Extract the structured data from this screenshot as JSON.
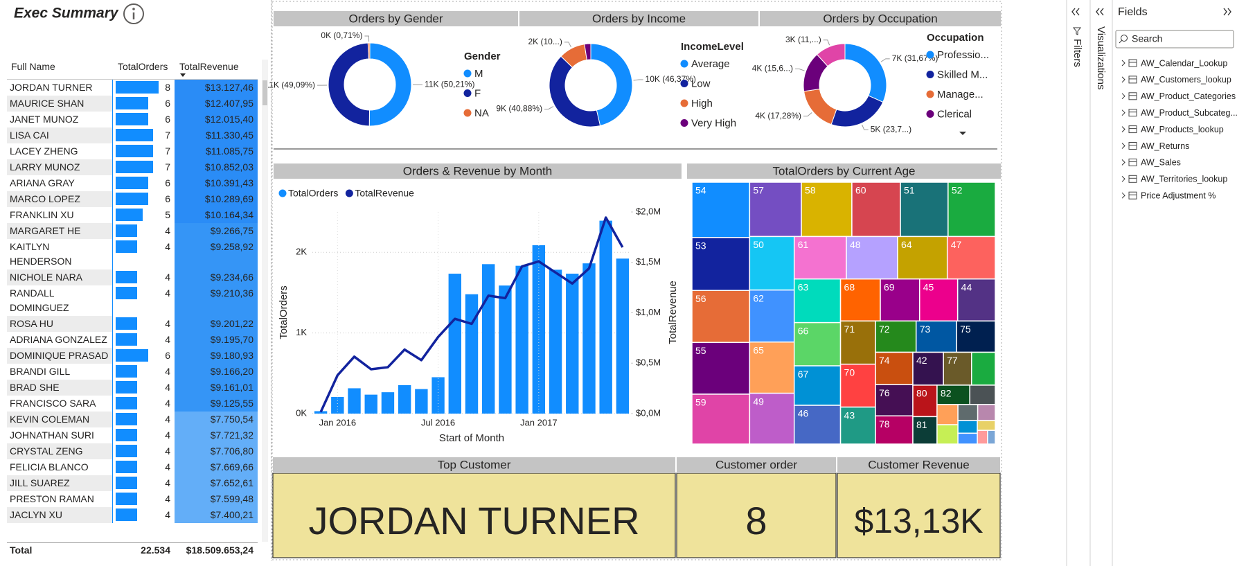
{
  "header": {
    "title": "Exec Summary"
  },
  "table": {
    "columns": [
      "Full Name",
      "TotalOrders",
      "TotalRevenue"
    ],
    "rows": [
      [
        "JORDAN TURNER",
        8,
        "$13.127,46"
      ],
      [
        "MAURICE SHAN",
        6,
        "$12.407,95"
      ],
      [
        "JANET MUNOZ",
        6,
        "$12.015,40"
      ],
      [
        "LISA CAI",
        7,
        "$11.330,45"
      ],
      [
        "LACEY ZHENG",
        7,
        "$11.085,75"
      ],
      [
        "LARRY MUNOZ",
        7,
        "$10.852,03"
      ],
      [
        "ARIANA GRAY",
        6,
        "$10.391,43"
      ],
      [
        "MARCO LOPEZ",
        6,
        "$10.289,69"
      ],
      [
        "FRANKLIN XU",
        5,
        "$10.164,34"
      ],
      [
        "MARGARET HE",
        4,
        "$9.266,75"
      ],
      [
        "KAITLYN HENDERSON",
        4,
        "$9.258,92"
      ],
      [
        "NICHOLE NARA",
        4,
        "$9.234,66"
      ],
      [
        "RANDALL DOMINGUEZ",
        4,
        "$9.210,36"
      ],
      [
        "ROSA HU",
        4,
        "$9.201,22"
      ],
      [
        "ADRIANA GONZALEZ",
        4,
        "$9.195,70"
      ],
      [
        "DOMINIQUE PRASAD",
        6,
        "$9.180,93"
      ],
      [
        "BRANDI GILL",
        4,
        "$9.166,20"
      ],
      [
        "BRAD SHE",
        4,
        "$9.161,01"
      ],
      [
        "FRANCISCO SARA",
        4,
        "$9.125,55"
      ],
      [
        "KEVIN COLEMAN",
        4,
        "$7.750,54"
      ],
      [
        "JOHNATHAN SURI",
        4,
        "$7.721,32"
      ],
      [
        "CRYSTAL ZENG",
        4,
        "$7.706,80"
      ],
      [
        "FELICIA BLANCO",
        4,
        "$7.669,66"
      ],
      [
        "JILL SUAREZ",
        4,
        "$7.652,61"
      ],
      [
        "PRESTON RAMAN",
        4,
        "$7.599,48"
      ],
      [
        "JACLYN XU",
        4,
        "$7.400,21"
      ]
    ],
    "bar_color": "#118dff",
    "row_fills": [
      "#2a8cf6",
      "#2a8cf6",
      "#2a8cf6",
      "#2a8cf6",
      "#2a8cf6",
      "#2a8cf6",
      "#2a8cf6",
      "#2a8cf6",
      "#2a8cf6",
      "#3595f6",
      "#3595f6",
      "#3595f6",
      "#3595f6",
      "#3595f6",
      "#3595f6",
      "#3595f6",
      "#3595f6",
      "#3595f6",
      "#3595f6",
      "#63aef8",
      "#63aef8",
      "#63aef8",
      "#63aef8",
      "#63aef8",
      "#63aef8",
      "#63aef8"
    ],
    "total": [
      "Total",
      "22.534",
      "$18.509.653,24"
    ]
  },
  "chart_data": [
    {
      "type": "donut",
      "title": "Orders by Gender",
      "legend_title": "Gender",
      "categories": [
        "M",
        "F",
        "NA"
      ],
      "values": [
        50.21,
        49.09,
        0.71
      ],
      "value_labels": [
        "11K (50,21%)",
        "11K (49,09%)",
        "0K (0,71%)"
      ],
      "colors": [
        "#118dff",
        "#12239e",
        "#e66c37"
      ]
    },
    {
      "type": "donut",
      "title": "Orders by Income",
      "legend_title": "IncomeLevel",
      "categories": [
        "Average",
        "Low",
        "High",
        "Very High"
      ],
      "values": [
        46.37,
        40.88,
        10.3,
        2.45
      ],
      "value_labels": [
        "10K (46,37%)",
        "9K (40,88%)",
        "2K (10...)",
        null
      ],
      "colors": [
        "#118dff",
        "#12239e",
        "#e66c37",
        "#6b007b"
      ]
    },
    {
      "type": "donut",
      "title": "Orders by Occupation",
      "legend_title": "Occupation",
      "categories": [
        "Professio...",
        "Skilled M...",
        "Manage...",
        "Clerical",
        null
      ],
      "values": [
        31.67,
        23.7,
        17.28,
        15.6,
        11.75
      ],
      "value_labels": [
        "7K (31,67%)",
        "5K (23,7...)",
        "4K (17,28%)",
        "4K (15,6...)",
        "3K (11,...)"
      ],
      "colors": [
        "#118dff",
        "#12239e",
        "#e66c37",
        "#6b007b",
        "#e044a7"
      ]
    },
    {
      "type": "combo",
      "title": "Orders & Revenue by Month",
      "x_label": "Start of Month",
      "y_label": "TotalOrders",
      "y2_label": "TotalRevenue",
      "categories": [
        null,
        "Jan 2016",
        null,
        null,
        null,
        null,
        null,
        "Jul 2016",
        null,
        null,
        null,
        null,
        null,
        "Jan 2017",
        null,
        null,
        null,
        null,
        null
      ],
      "series": [
        {
          "name": "TotalOrders",
          "color": "#118dff",
          "values": [
            30,
            206,
            314,
            235,
            265,
            353,
            304,
            451,
            1735,
            1480,
            1853,
            1588,
            1833,
            2088,
            1784,
            1735,
            1863,
            2392,
            1922
          ]
        },
        {
          "name": "TotalRevenue",
          "color": "#12239e",
          "axis": "y2",
          "values": [
            16000,
            380000,
            565000,
            440000,
            460000,
            635000,
            530000,
            760000,
            940000,
            890000,
            1170000,
            1145000,
            1460000,
            1510000,
            1400000,
            1290000,
            1440000,
            1945000,
            1650000
          ]
        }
      ],
      "ylim": [
        0,
        2500
      ],
      "yticks": [
        {
          "value": 0,
          "label": "0K"
        },
        {
          "value": 1000,
          "label": "1K"
        },
        {
          "value": 2000,
          "label": "2K"
        }
      ],
      "y2lim": [
        0,
        2000000
      ],
      "y2ticks": [
        {
          "value": 0,
          "label": "$0,0M"
        },
        {
          "value": 500000,
          "label": "$0,5M"
        },
        {
          "value": 1000000,
          "label": "$1,0M"
        },
        {
          "value": 1500000,
          "label": "$1,5M"
        },
        {
          "value": 2000000,
          "label": "$2,0M"
        }
      ],
      "grid": true
    },
    {
      "type": "treemap",
      "title": "TotalOrders by Current Age",
      "categories": [
        "54",
        "53",
        "56",
        "55",
        "59",
        "57",
        "58",
        "60",
        "51",
        "52",
        "50",
        "62",
        "65",
        "49",
        "61",
        "48",
        "64",
        "47",
        "63",
        "66",
        "67",
        "46",
        "68",
        "69",
        "45",
        "44",
        "71",
        "70",
        "43",
        "72",
        "73",
        "75",
        "74",
        "76",
        "78",
        "42",
        "77",
        null,
        "80",
        "81",
        "82",
        null,
        null,
        null,
        null,
        null,
        null,
        null,
        null,
        null,
        null
      ],
      "values": [
        909,
        870,
        855,
        850,
        820,
        800,
        781,
        751,
        737,
        730,
        679,
        660,
        650,
        645,
        630,
        620,
        600,
        580,
        575,
        570,
        520,
        511,
        476,
        470,
        455,
        450,
        430,
        427,
        368,
        362,
        360,
        345,
        344,
        333,
        300,
        286,
        263,
        222,
        217,
        189,
        181,
        141,
        120,
        115,
        90,
        80,
        70,
        60,
        50,
        40,
        30
      ],
      "colors": [
        "#118dff",
        "#12239e",
        "#e66c37",
        "#6b007b",
        "#e044a7",
        "#744ec2",
        "#d9b300",
        "#d64550",
        "#197278",
        "#1aab40",
        "#15c6f4",
        "#4092ff",
        "#ffa058",
        "#be5dc9",
        "#f472d0",
        "#b5a1ff",
        "#c4a200",
        "#fd625e",
        "#00dbbc",
        "#5bd667",
        "#0091d5",
        "#4668c5",
        "#ff6300",
        "#99008a",
        "#ec008c",
        "#533285",
        "#99700a",
        "#ff4141",
        "#1f9a85",
        "#25891c",
        "#0057a2",
        "#002050",
        "#c94f0f",
        "#450f54",
        "#b60064",
        "#34124f",
        "#6a5a29",
        "#1aab40",
        "#ba141a",
        "#0c3d37",
        "#0b511f",
        "#4b5255",
        "#ffa058",
        "#c6ef55",
        "#5f6b6d",
        "#b887ad",
        "#0091d5",
        "#4092ff",
        "#e8d166",
        "#ff9b9b",
        "#7aa6d6"
      ]
    }
  ],
  "cards": [
    {
      "title": "Top Customer",
      "value": "JORDAN TURNER"
    },
    {
      "title": "Customer order",
      "value": "8"
    },
    {
      "title": "Customer Revenue",
      "value": "$13,13K"
    }
  ],
  "panes": {
    "filters": "Filters",
    "visualizations": "Visualizations",
    "fields": {
      "title": "Fields",
      "search": "Search",
      "items": [
        "AW_Calendar_Lookup",
        "AW_Customers_lookup",
        "AW_Product_Categories",
        "AW_Product_Subcateg...",
        "AW_Products_lookup",
        "AW_Returns",
        "AW_Sales",
        "AW_Territories_lookup",
        "Price Adjustment %"
      ]
    }
  }
}
